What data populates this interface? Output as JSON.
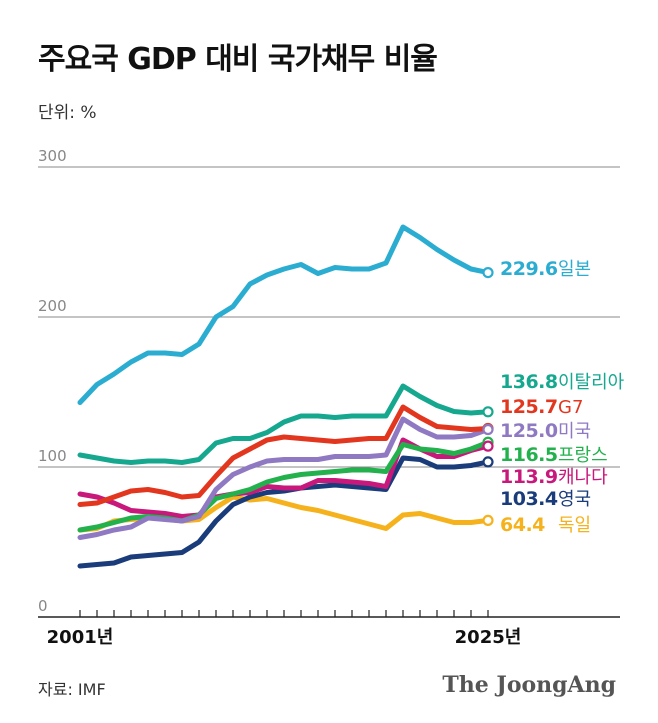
{
  "title": "주요국 GDP 대비 국가채무 비율",
  "unit_label": "단위: %",
  "source": "자료: IMF",
  "brand": "The JoongAng",
  "chart_data": {
    "type": "line",
    "title": "주요국 GDP 대비 국가채무 비율",
    "ylabel": "",
    "xlabel": "",
    "ylim": [
      0,
      300
    ],
    "yticks": [
      0,
      100,
      200,
      300
    ],
    "xlim": [
      2001,
      2025
    ],
    "xtick_labels": [
      {
        "year": 2001,
        "label": "2001년"
      },
      {
        "year": 2025,
        "label": "2025년"
      }
    ],
    "grid": true,
    "x": [
      2001,
      2002,
      2003,
      2004,
      2005,
      2006,
      2007,
      2008,
      2009,
      2010,
      2011,
      2012,
      2013,
      2014,
      2015,
      2016,
      2017,
      2018,
      2019,
      2020,
      2021,
      2022,
      2023,
      2024,
      2025
    ],
    "series": [
      {
        "name": "일본",
        "label": "229.6",
        "color": "#2bacd1",
        "values": [
          143,
          155,
          162,
          170,
          176,
          176,
          175,
          182,
          200,
          207,
          222,
          228,
          232,
          235,
          229,
          233,
          232,
          232,
          236,
          260,
          253,
          245,
          238,
          232,
          229.6
        ]
      },
      {
        "name": "이탈리아",
        "label": "136.8",
        "color": "#16a88f",
        "values": [
          108,
          106,
          104,
          103,
          104,
          104,
          103,
          105,
          116,
          119,
          119,
          123,
          130,
          134,
          134,
          133,
          134,
          134,
          134,
          154,
          147,
          141,
          137,
          136,
          136.8
        ]
      },
      {
        "name": "G7",
        "label": "125.7",
        "color": "#e2361f",
        "values": [
          75,
          76,
          80,
          84,
          85,
          83,
          80,
          81,
          94,
          106,
          112,
          118,
          120,
          119,
          118,
          117,
          118,
          119,
          119,
          140,
          133,
          127,
          126,
          125,
          125.7
        ]
      },
      {
        "name": "미국",
        "label": "125.0",
        "color": "#8f79c2",
        "values": [
          53,
          55,
          58,
          60,
          66,
          65,
          64,
          67,
          85,
          95,
          100,
          104,
          105,
          105,
          105,
          107,
          107,
          107,
          108,
          132,
          125,
          120,
          120,
          121,
          125.0
        ]
      },
      {
        "name": "프랑스",
        "label": "116.5",
        "color": "#22b14c",
        "values": [
          58,
          60,
          63,
          66,
          67,
          66,
          64,
          68,
          79,
          82,
          85,
          90,
          93,
          95,
          96,
          97,
          98,
          98,
          97,
          115,
          112,
          111,
          109,
          112,
          116.5
        ]
      },
      {
        "name": "캐나다",
        "label": "113.9",
        "color": "#c8187c",
        "values": [
          82,
          80,
          76,
          71,
          70,
          69,
          67,
          68,
          80,
          82,
          83,
          87,
          86,
          86,
          91,
          91,
          90,
          89,
          87,
          118,
          112,
          107,
          107,
          111,
          113.9
        ]
      },
      {
        "name": "영국",
        "label": "103.4",
        "color": "#1a3c7a",
        "values": [
          34,
          35,
          36,
          40,
          41,
          42,
          43,
          50,
          64,
          75,
          80,
          83,
          84,
          86,
          87,
          88,
          87,
          86,
          85,
          106,
          105,
          100,
          100,
          101,
          103.4
        ]
      },
      {
        "name": "독일",
        "label": "64.4",
        "color": "#f6b21c",
        "values": [
          58,
          59,
          64,
          65,
          66,
          67,
          64,
          65,
          73,
          80,
          78,
          79,
          76,
          73,
          71,
          68,
          65,
          62,
          59,
          68,
          69,
          66,
          63,
          63,
          64.4
        ]
      }
    ]
  }
}
